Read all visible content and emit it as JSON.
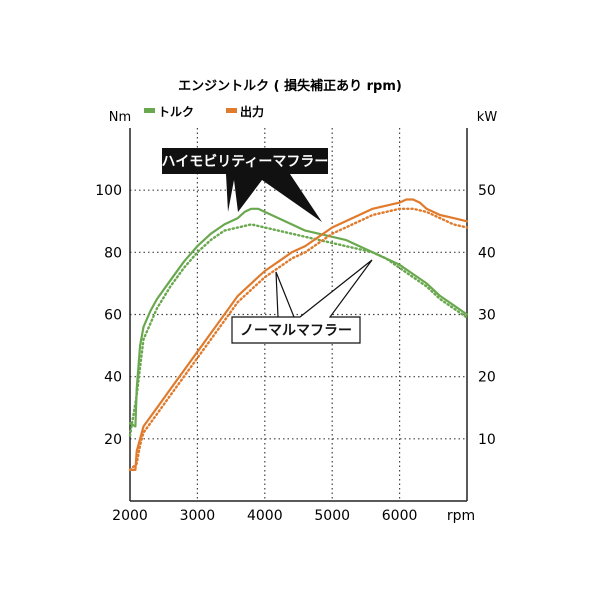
{
  "chart_data": {
    "type": "line",
    "title": "エンジントルク ( 損失補正あり rpm)",
    "xlabel": "rpm",
    "ylabel_left": "Nm",
    "ylabel_right": "kW",
    "xlim": [
      2000,
      7000
    ],
    "ylim_left": [
      0,
      120
    ],
    "ylim_right": [
      0,
      60
    ],
    "x_ticks": [
      2000,
      3000,
      4000,
      5000,
      6000
    ],
    "y_ticks_left": [
      20,
      40,
      60,
      80,
      100
    ],
    "y_ticks_right": [
      10,
      20,
      30,
      40,
      50
    ],
    "grid": true,
    "legend": [
      {
        "label": "トルク",
        "color": "#6aa84f"
      },
      {
        "label": "出力",
        "color": "#e07b2d"
      }
    ],
    "annotations": {
      "high_mobility": "ハイモビリティーマフラー",
      "normal": "ノーマルマフラー"
    },
    "series": [
      {
        "legend_ref": 0,
        "style": "solid",
        "axis": "left",
        "color": "#6aa84f",
        "x": [
          2000,
          2080,
          2100,
          2150,
          2200,
          2300,
          2400,
          2600,
          2800,
          3000,
          3200,
          3400,
          3600,
          3700,
          3800,
          3900,
          4000,
          4200,
          4400,
          4600,
          4800,
          5000,
          5200,
          5400,
          5600,
          5800,
          6000,
          6200,
          6400,
          6600,
          6800,
          7000
        ],
        "values": [
          25,
          24,
          36,
          50,
          56,
          61,
          65,
          71,
          77,
          82,
          86,
          89,
          91,
          93,
          94,
          94,
          93,
          91,
          89,
          87,
          86,
          85,
          84,
          82,
          80,
          78,
          76,
          73,
          70,
          66,
          63,
          60
        ]
      },
      {
        "legend_ref": 0,
        "style": "dotted",
        "axis": "left",
        "color": "#6aa84f",
        "x": [
          2000,
          2100,
          2200,
          2400,
          2600,
          2800,
          3000,
          3200,
          3400,
          3600,
          3800,
          4000,
          4200,
          4400,
          4600,
          4800,
          5000,
          5200,
          5400,
          5600,
          5800,
          6000,
          6200,
          6400,
          6600,
          6800,
          7000
        ],
        "values": [
          21,
          34,
          52,
          62,
          69,
          75,
          80,
          84,
          87,
          88,
          89,
          88,
          87,
          86,
          85,
          84,
          83,
          82,
          81,
          80,
          78,
          75,
          72,
          69,
          65,
          62,
          59
        ]
      },
      {
        "legend_ref": 1,
        "style": "solid",
        "axis": "right",
        "color": "#e07b2d",
        "x": [
          2000,
          2080,
          2100,
          2150,
          2200,
          2400,
          2600,
          2800,
          3000,
          3200,
          3400,
          3600,
          3800,
          4000,
          4200,
          4400,
          4600,
          4800,
          5000,
          5200,
          5400,
          5600,
          5800,
          6000,
          6100,
          6200,
          6300,
          6400,
          6600,
          6800,
          7000
        ],
        "values": [
          5,
          5,
          8,
          10,
          12,
          15,
          18,
          21,
          24,
          27,
          30,
          33,
          35,
          37,
          38.5,
          40,
          41,
          42.5,
          44,
          45,
          46,
          47,
          47.5,
          48,
          48.5,
          48.5,
          48,
          47,
          46,
          45.5,
          45
        ]
      },
      {
        "legend_ref": 1,
        "style": "dotted",
        "axis": "right",
        "color": "#e07b2d",
        "x": [
          2000,
          2100,
          2150,
          2200,
          2400,
          2600,
          2800,
          3000,
          3200,
          3400,
          3600,
          3800,
          4000,
          4200,
          4400,
          4600,
          4800,
          5000,
          5200,
          5400,
          5600,
          5800,
          6000,
          6200,
          6400,
          6600,
          6800,
          7000
        ],
        "values": [
          5,
          6,
          9,
          11,
          14,
          17,
          20,
          23,
          26,
          29,
          32,
          34,
          36,
          37.5,
          39,
          40,
          41.5,
          43,
          44,
          45,
          46,
          46.5,
          47,
          47,
          46.5,
          45.5,
          44.5,
          44
        ]
      }
    ]
  }
}
